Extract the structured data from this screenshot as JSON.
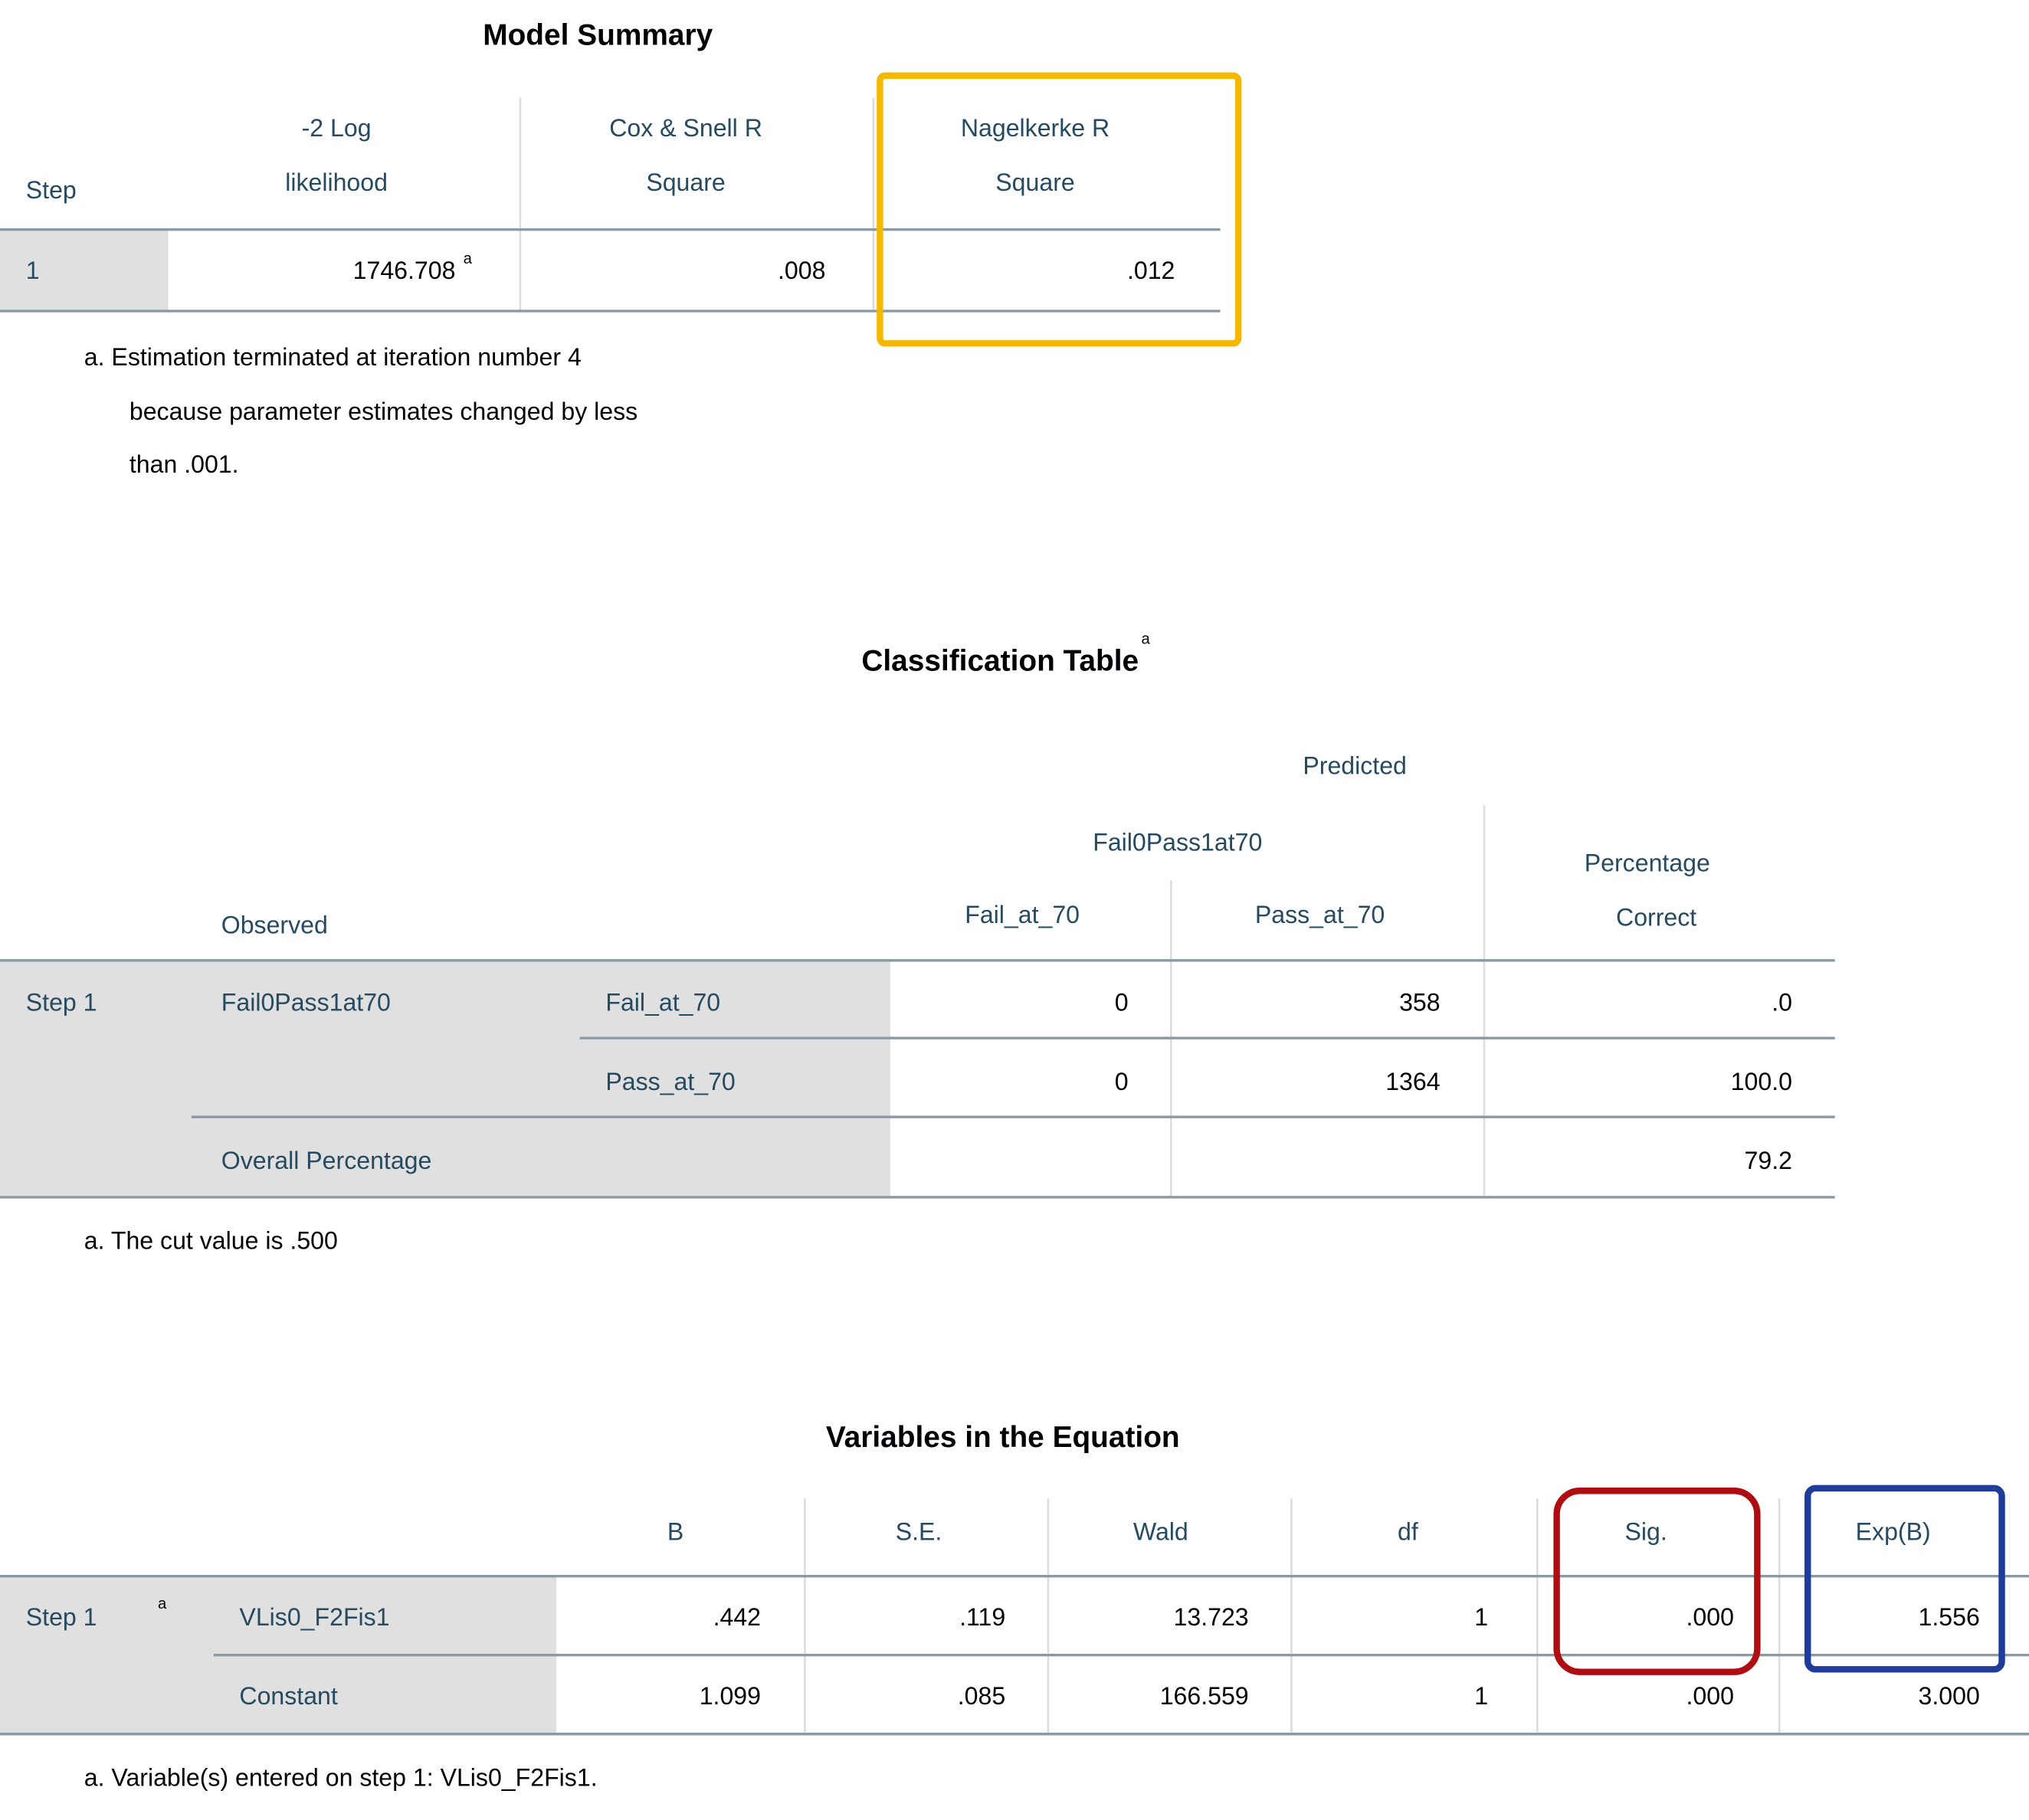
{
  "model_summary": {
    "title": "Model Summary",
    "columns": [
      [
        "Step"
      ],
      [
        "-2 Log",
        "likelihood"
      ],
      [
        "Cox & Snell R",
        "Square"
      ],
      [
        "Nagelkerke R",
        "Square"
      ]
    ],
    "rows": [
      [
        "1",
        "1746.708",
        ".008",
        ".012"
      ]
    ],
    "footnote_mark": "a",
    "footnote": [
      "a. Estimation terminated at iteration number 4",
      "because parameter estimates changed by less",
      "than .001."
    ]
  },
  "classification_table": {
    "title": "Classification Table",
    "title_mark": "a",
    "predicted": "Predicted",
    "variable": "Fail0Pass1at70",
    "columns": [
      "Fail_at_70",
      "Pass_at_70"
    ],
    "percentage_correct": [
      "Percentage",
      "Correct"
    ],
    "observed": "Observed",
    "step": "Step 1",
    "rows": [
      [
        "Fail0Pass1at70",
        "Fail_at_70",
        "0",
        "358",
        ".0"
      ],
      [
        "Pass_at_70",
        "0",
        "1364",
        "100.0"
      ]
    ],
    "overall": [
      "Overall Percentage",
      "79.2"
    ],
    "footnote": "a. The cut value is .500"
  },
  "variables_in_equation": {
    "title": "Variables in the Equation",
    "columns": [
      "B",
      "S.E.",
      "Wald",
      "df",
      "Sig.",
      "Exp(B)"
    ],
    "step": "Step 1",
    "step_mark": "a",
    "rows": [
      [
        "VLis0_F2Fis1",
        ".442",
        ".119",
        "13.723",
        "1",
        ".000",
        "1.556"
      ],
      [
        "Constant",
        "1.099",
        ".085",
        "166.559",
        "1",
        ".000",
        "3.000"
      ]
    ],
    "footnote": "a. Variable(s) entered on step 1: VLis0_F2Fis1."
  }
}
